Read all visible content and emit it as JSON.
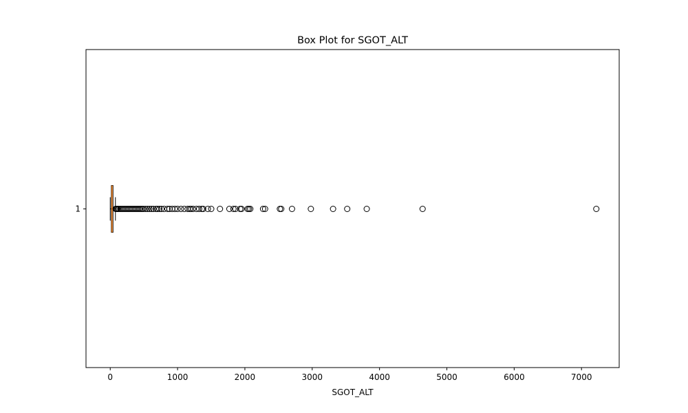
{
  "chart_data": {
    "type": "box",
    "orientation": "horizontal",
    "title": "Box Plot for SGOT_ALT",
    "xlabel": "SGOT_ALT",
    "ylabel": "",
    "xlim": [
      -360,
      7560
    ],
    "xticks": [
      0,
      1000,
      2000,
      3000,
      4000,
      5000,
      6000,
      7000
    ],
    "yticks": [
      "1"
    ],
    "grid": false,
    "colors": {
      "box": "#000000",
      "median": "#ff7f0e",
      "flier": "#000000",
      "background": "#ffffff"
    },
    "series": [
      {
        "category": "1",
        "min": 0,
        "q1": 17,
        "median": 26,
        "q3": 41,
        "max": 77,
        "fliers": [
          80,
          90,
          100,
          115,
          130,
          150,
          170,
          190,
          210,
          230,
          250,
          270,
          290,
          310,
          330,
          350,
          370,
          390,
          410,
          430,
          450,
          470,
          490,
          520,
          550,
          580,
          610,
          640,
          680,
          700,
          730,
          760,
          800,
          850,
          880,
          920,
          960,
          1000,
          1050,
          1100,
          1150,
          1180,
          1200,
          1230,
          1280,
          1320,
          1360,
          1380,
          1450,
          1500,
          1630,
          1770,
          1830,
          1860,
          1930,
          1950,
          2040,
          2060,
          2080,
          2270,
          2300,
          2520,
          2540,
          2700,
          2980,
          3310,
          3520,
          3810,
          4640,
          7220
        ]
      }
    ]
  }
}
